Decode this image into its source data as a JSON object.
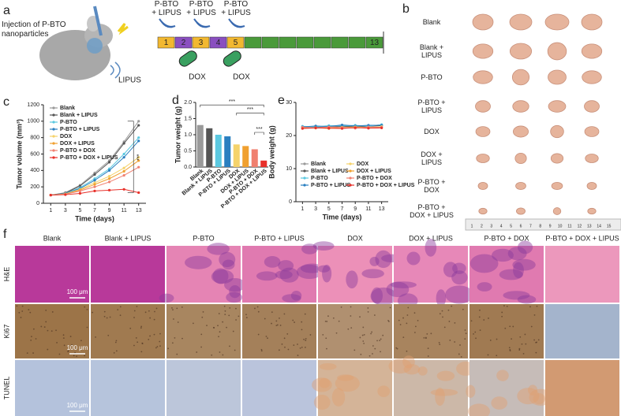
{
  "panel_labels": [
    "a",
    "b",
    "c",
    "d",
    "e",
    "f"
  ],
  "schematic": {
    "injection": "Injection of P-BTO\nnanoparticles",
    "lipus": "LIPUS",
    "treatments": [
      "P-BTO\n+ LIPUS",
      "P-BTO\n+ LIPUS",
      "P-BTO\n+ LIPUS"
    ],
    "days": [
      "1",
      "2",
      "3",
      "4",
      "5",
      "13"
    ],
    "drugs": [
      "DOX",
      "DOX"
    ]
  },
  "photos": {
    "rows": [
      "Blank",
      "Blank +\nLIPUS",
      "P-BTO",
      "P-BTO +\nLIPUS",
      "DOX",
      "DOX +\nLIPUS",
      "P-BTO +\nDOX",
      "P-BTO +\nDOX + LIPUS"
    ],
    "ruler": [
      1,
      2,
      3,
      4,
      5,
      6,
      7,
      8,
      9,
      10,
      11,
      12,
      13,
      14,
      15
    ]
  },
  "chart_data": [
    {
      "type": "line",
      "x_label": "Time (days)",
      "y_label": "Tumor volume (mm³)",
      "x": [
        1,
        3,
        5,
        7,
        9,
        11,
        13
      ],
      "xlim": [
        0,
        14
      ],
      "xticks": [
        1,
        3,
        5,
        7,
        9,
        11,
        13
      ],
      "ylim": [
        0,
        1200
      ],
      "yticks": [
        0,
        200,
        400,
        600,
        800,
        1000,
        1200
      ],
      "legend": "upper left",
      "annotations": [
        "***"
      ],
      "series": [
        {
          "name": "Blank",
          "color": "#9a9a9a",
          "values": [
            100,
            130,
            220,
            370,
            520,
            750,
            1000
          ]
        },
        {
          "name": "Blank + LIPUS",
          "color": "#555555",
          "values": [
            100,
            125,
            210,
            350,
            500,
            730,
            950
          ]
        },
        {
          "name": "P-BTO",
          "color": "#5bc8e0",
          "values": [
            100,
            120,
            190,
            300,
            420,
            600,
            800
          ]
        },
        {
          "name": "P-BTO + LIPUS",
          "color": "#2a7fc0",
          "values": [
            100,
            120,
            180,
            280,
            400,
            560,
            760
          ]
        },
        {
          "name": "DOX",
          "color": "#f5d36b",
          "values": [
            100,
            115,
            170,
            250,
            330,
            430,
            560
          ]
        },
        {
          "name": "DOX + LIPUS",
          "color": "#f0a030",
          "values": [
            100,
            110,
            160,
            230,
            300,
            390,
            520
          ]
        },
        {
          "name": "P-BTO + DOX",
          "color": "#f08070",
          "values": [
            100,
            110,
            150,
            200,
            260,
            340,
            440
          ]
        },
        {
          "name": "P-BTO + DOX + LIPUS",
          "color": "#e8302a",
          "values": [
            100,
            105,
            120,
            150,
            160,
            170,
            130
          ]
        }
      ]
    },
    {
      "type": "bar",
      "y_label": "Tumor weight (g)",
      "categories": [
        "Blank",
        "Blank + LIPUS",
        "P-BTO",
        "P-BTO + LIPUS",
        "DOX",
        "DOX + LIPUS",
        "P-BTO + DOX",
        "P-BTO + DOX + LIPUS"
      ],
      "values": [
        1.3,
        1.2,
        1.0,
        0.95,
        0.7,
        0.65,
        0.55,
        0.2
      ],
      "colors": [
        "#9a9a9a",
        "#555555",
        "#5bc8e0",
        "#2a7fc0",
        "#f5d36b",
        "#f0a030",
        "#f08070",
        "#e8302a"
      ],
      "ylim": [
        0,
        2
      ],
      "yticks": [
        {
          "value": 0,
          "label": "0.0"
        },
        0.5,
        {
          "value": 1,
          "label": "1.0"
        },
        1.5,
        {
          "value": 2,
          "label": "2.0"
        }
      ],
      "annotations": [
        "***",
        "***",
        "***"
      ]
    },
    {
      "type": "line",
      "x_label": "Time (days)",
      "y_label": "Body weight (g)",
      "x": [
        1,
        3,
        5,
        7,
        9,
        11,
        13
      ],
      "xlim": [
        0,
        14
      ],
      "xticks": [
        1,
        3,
        5,
        7,
        9,
        11,
        13
      ],
      "ylim": [
        0,
        30
      ],
      "yticks": [
        0,
        10,
        20,
        30
      ],
      "legend": "lower center",
      "series": [
        {
          "name": "Blank",
          "color": "#9a9a9a",
          "values": [
            22.5,
            22.8,
            22.6,
            23,
            22.7,
            22.9,
            23.2
          ]
        },
        {
          "name": "Blank + LIPUS",
          "color": "#555555",
          "values": [
            22.3,
            22.5,
            22.4,
            22.8,
            22.6,
            22.8,
            23
          ]
        },
        {
          "name": "P-BTO",
          "color": "#5bc8e0",
          "values": [
            22.8,
            22.6,
            23,
            22.9,
            23.1,
            22.8,
            23.3
          ]
        },
        {
          "name": "P-BTO + LIPUS",
          "color": "#2a7fc0",
          "values": [
            22.6,
            22.9,
            22.7,
            23.2,
            22.9,
            23.1,
            23.1
          ]
        },
        {
          "name": "DOX",
          "color": "#f5d36b",
          "values": [
            22.4,
            22.2,
            22.5,
            22.3,
            22.6,
            22.4,
            22.7
          ]
        },
        {
          "name": "DOX + LIPUS",
          "color": "#f0a030",
          "values": [
            22.2,
            22.4,
            22.1,
            22.5,
            22.3,
            22.5,
            22.4
          ]
        },
        {
          "name": "P-BTO + DOX",
          "color": "#f08070",
          "values": [
            22.5,
            22.3,
            22.6,
            22.4,
            22.2,
            22.6,
            22.5
          ]
        },
        {
          "name": "P-BTO + DOX + LIPUS",
          "color": "#e8302a",
          "values": [
            22.1,
            22.3,
            22.2,
            22.1,
            22.4,
            22.2,
            22.3
          ]
        }
      ]
    }
  ],
  "histology": {
    "columns": [
      "Blank",
      "Blank + LIPUS",
      "P-BTO",
      "P-BTO + LIPUS",
      "DOX",
      "DOX + LIPUS",
      "P-BTO + DOX",
      "P-BTO + DOX + LIPUS"
    ],
    "rows": [
      "H&E",
      "Ki67",
      "TUNEL"
    ],
    "scale_bars": [
      "100 μm",
      "100 μm",
      "100 μm"
    ]
  }
}
